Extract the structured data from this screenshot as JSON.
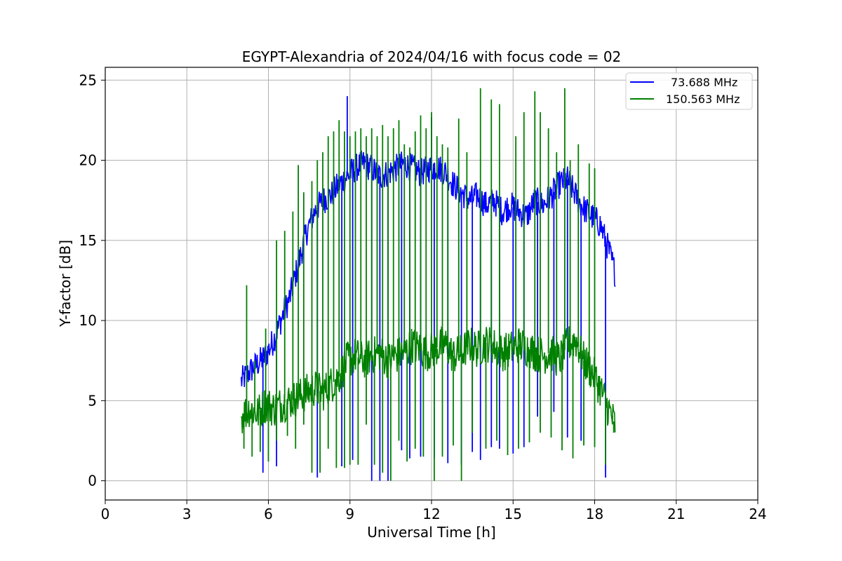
{
  "chart_data": {
    "type": "line",
    "title": "EGYPT-Alexandria of 2024/04/16 with focus code = 02",
    "xlabel": "Universal Time [h]",
    "ylabel": "Y-factor [dB]",
    "xlim": [
      0,
      24
    ],
    "ylim": [
      -1.2,
      25.8
    ],
    "xticks": [
      0,
      3,
      6,
      9,
      12,
      15,
      18,
      21,
      24
    ],
    "yticks": [
      0,
      5,
      10,
      15,
      20,
      25
    ],
    "xtick_labels": [
      "0",
      "3",
      "6",
      "9",
      "12",
      "15",
      "18",
      "21",
      "24"
    ],
    "ytick_labels": [
      "0",
      "5",
      "10",
      "15",
      "20",
      "25"
    ],
    "grid": true,
    "legend_position": "top-right",
    "series": [
      {
        "name": "73.688 MHz",
        "color": "#0000ff",
        "x": [
          5.0,
          5.3,
          5.6,
          5.9,
          6.2,
          6.5,
          6.8,
          7.1,
          7.4,
          7.7,
          8.0,
          8.3,
          8.6,
          8.9,
          9.2,
          9.5,
          9.8,
          10.1,
          10.4,
          10.7,
          11.0,
          11.3,
          11.6,
          11.9,
          12.2,
          12.5,
          12.8,
          13.1,
          13.4,
          13.7,
          14.0,
          14.3,
          14.6,
          14.9,
          15.2,
          15.5,
          15.8,
          16.1,
          16.4,
          16.7,
          17.0,
          17.3,
          17.6,
          17.9,
          18.2,
          18.5,
          18.75
        ],
        "y": [
          6.2,
          6.8,
          7.3,
          7.8,
          8.8,
          10.2,
          11.5,
          13.5,
          15.5,
          16.8,
          17.5,
          17.8,
          18.5,
          19.0,
          19.5,
          19.8,
          19.5,
          19.0,
          19.2,
          19.5,
          19.8,
          19.5,
          19.2,
          19.5,
          19.6,
          19.3,
          18.5,
          18.0,
          17.5,
          17.8,
          17.2,
          17.5,
          16.8,
          17.2,
          16.8,
          16.5,
          17.5,
          17.2,
          17.8,
          18.5,
          18.8,
          17.8,
          17.0,
          16.5,
          16.0,
          14.5,
          13.0
        ],
        "dips_x": [
          5.8,
          6.3,
          7.8,
          8.7,
          9.1,
          9.8,
          10.1,
          10.4,
          10.9,
          11.2,
          11.6,
          12.1,
          12.6,
          13.1,
          13.5,
          13.8,
          14.2,
          14.5,
          15.0,
          15.4,
          15.9,
          16.5,
          17.0,
          17.5,
          18.4
        ],
        "dips_y": [
          0.5,
          0.9,
          0.2,
          0.9,
          1.3,
          0.0,
          0.0,
          0.0,
          1.9,
          1.4,
          1.5,
          1.4,
          1.1,
          1.0,
          1.8,
          1.3,
          2.1,
          2.0,
          1.7,
          2.1,
          4.0,
          4.3,
          2.7,
          2.5,
          0.2
        ],
        "spikes_x": [
          8.9,
          12.0
        ],
        "spikes_y": [
          24.0,
          22.7
        ]
      },
      {
        "name": "150.563 MHz",
        "color": "#008000",
        "x": [
          5.0,
          5.3,
          5.6,
          5.9,
          6.2,
          6.5,
          6.8,
          7.1,
          7.4,
          7.7,
          8.0,
          8.3,
          8.6,
          8.9,
          9.2,
          9.5,
          9.8,
          10.1,
          10.4,
          10.7,
          11.0,
          11.3,
          11.6,
          11.9,
          12.2,
          12.5,
          12.8,
          13.1,
          13.4,
          13.7,
          14.0,
          14.3,
          14.6,
          14.9,
          15.2,
          15.5,
          15.8,
          16.1,
          16.4,
          16.7,
          17.0,
          17.3,
          17.6,
          17.9,
          18.2,
          18.5,
          18.75
        ],
        "y": [
          4.0,
          4.5,
          4.2,
          4.8,
          4.5,
          4.8,
          5.0,
          5.2,
          5.5,
          5.8,
          5.5,
          6.0,
          6.5,
          7.5,
          7.8,
          7.5,
          7.8,
          8.0,
          7.5,
          7.8,
          8.0,
          8.5,
          8.2,
          8.0,
          8.3,
          8.5,
          7.8,
          8.0,
          8.5,
          8.2,
          8.6,
          8.4,
          8.0,
          8.2,
          8.5,
          8.3,
          8.0,
          7.8,
          8.0,
          7.5,
          8.5,
          8.8,
          7.5,
          6.8,
          5.8,
          4.5,
          3.5
        ],
        "spikes_x": [
          5.2,
          5.5,
          5.9,
          6.3,
          6.6,
          6.9,
          7.1,
          7.3,
          7.6,
          7.8,
          8.0,
          8.2,
          8.4,
          8.6,
          8.8,
          9.0,
          9.2,
          9.4,
          9.6,
          9.8,
          10.0,
          10.2,
          10.4,
          10.6,
          10.8,
          11.0,
          11.2,
          11.4,
          11.6,
          11.8,
          12.0,
          12.2,
          12.4,
          12.6,
          13.0,
          13.3,
          13.8,
          14.2,
          14.5,
          15.1,
          15.4,
          15.8,
          16.0,
          16.3,
          16.6,
          16.9,
          17.1,
          17.4,
          17.8,
          18.0
        ],
        "spikes_y": [
          12.2,
          7.5,
          9.5,
          15.0,
          15.6,
          16.8,
          19.7,
          18.0,
          18.7,
          20.0,
          20.5,
          21.5,
          21.8,
          22.5,
          21.8,
          21.5,
          21.8,
          22.0,
          21.5,
          22.0,
          21.5,
          22.2,
          21.5,
          22.0,
          22.5,
          21.0,
          20.8,
          21.8,
          22.8,
          22.0,
          23.0,
          21.5,
          21.0,
          20.8,
          22.6,
          20.5,
          24.5,
          23.8,
          23.5,
          21.5,
          23.0,
          24.3,
          23.0,
          22.0,
          20.5,
          24.5,
          20.0,
          21.0,
          19.8,
          19.5
        ],
        "dips_x": [
          5.1,
          5.4,
          5.7,
          6.0,
          6.3,
          6.7,
          7.0,
          7.3,
          7.6,
          7.9,
          8.2,
          8.5,
          8.8,
          9.0,
          9.3,
          9.6,
          9.9,
          10.2,
          10.5,
          10.8,
          11.1,
          11.4,
          11.7,
          12.1,
          12.4,
          12.8,
          13.1,
          13.5,
          14.0,
          14.4,
          14.8,
          15.2,
          15.6,
          16.0,
          16.4,
          16.8,
          17.2,
          17.6,
          18.0,
          18.4,
          18.7
        ],
        "dips_y": [
          2.0,
          1.5,
          1.8,
          1.2,
          2.5,
          2.8,
          2.0,
          3.5,
          0.5,
          0.5,
          2.0,
          0.8,
          0.8,
          1.0,
          1.0,
          3.5,
          1.0,
          0.5,
          0.0,
          2.5,
          1.2,
          2.0,
          1.5,
          0.0,
          1.5,
          2.2,
          0.0,
          3.0,
          2.0,
          2.5,
          1.6,
          2.0,
          2.4,
          3.0,
          2.7,
          1.9,
          1.4,
          2.2,
          2.1,
          1.0,
          3.0
        ]
      }
    ]
  }
}
